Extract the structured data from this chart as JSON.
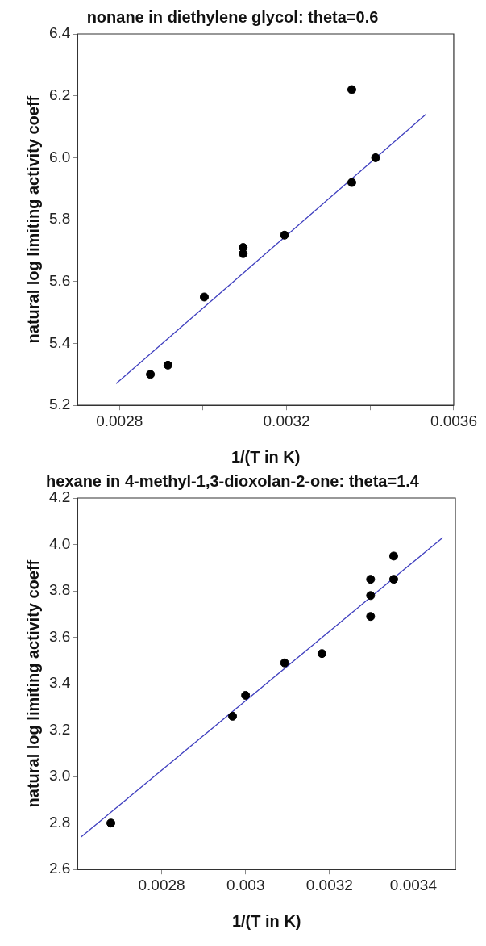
{
  "chart_data": [
    {
      "type": "scatter",
      "title": "nonane in diethylene glycol: theta=0.6",
      "xlabel": "1/(T in K)",
      "ylabel": "natural log limiting activity coeff",
      "xlim": [
        0.0027,
        0.0036
      ],
      "xticks": [
        0.0028,
        {
          "value": 0.003,
          "label": null
        },
        0.0032,
        {
          "value": 0.0034,
          "label": null
        },
        0.0036
      ],
      "ylim": [
        5.2,
        6.4
      ],
      "yticks": [
        5.2,
        5.4,
        5.6,
        5.8,
        {
          "value": 6,
          "label": "6.0"
        },
        6.2,
        6.4
      ],
      "grid": false,
      "legend": false,
      "marker": "circle",
      "series": [
        {
          "type": "scatter",
          "color": "#000000",
          "x": [
            0.002874,
            0.002916,
            0.003003,
            0.003096,
            0.003096,
            0.003195,
            0.003356,
            0.003356,
            0.003413
          ],
          "values": [
            5.3,
            5.33,
            5.55,
            5.71,
            5.69,
            5.75,
            6.22,
            5.92,
            6.0
          ]
        },
        {
          "type": "line",
          "color": "#3f3fbf",
          "x": [
            0.002792,
            0.003533
          ],
          "values": [
            5.27,
            6.14
          ],
          "marker": "none"
        }
      ]
    },
    {
      "type": "scatter",
      "title": "hexane in 4-methyl-1,3-dioxolan-2-one: theta=1.4",
      "xlabel": "1/(T in K)",
      "ylabel": "natural log limiting activity coeff",
      "xlim": [
        0.0026,
        0.0035
      ],
      "xticks": [
        0.0028,
        0.003,
        0.0032,
        0.0034
      ],
      "ylim": [
        2.6,
        4.2
      ],
      "yticks": [
        2.6,
        2.8,
        {
          "value": 3,
          "label": "3.0"
        },
        3.2,
        3.4,
        3.6,
        3.8,
        {
          "value": 4,
          "label": "4.0"
        },
        4.2
      ],
      "grid": false,
      "legend": false,
      "marker": "circle",
      "series": [
        {
          "type": "scatter",
          "color": "#000000",
          "x": [
            0.002679,
            0.002969,
            0.003,
            0.003093,
            0.003182,
            0.003298,
            0.003298,
            0.003298,
            0.003353,
            0.003353
          ],
          "values": [
            2.8,
            3.26,
            3.35,
            3.49,
            3.53,
            3.85,
            3.78,
            3.69,
            3.95,
            3.85
          ]
        },
        {
          "type": "line",
          "color": "#3f3fbf",
          "x": [
            0.002608,
            0.00347
          ],
          "values": [
            2.74,
            4.03
          ],
          "marker": "none"
        }
      ]
    }
  ]
}
